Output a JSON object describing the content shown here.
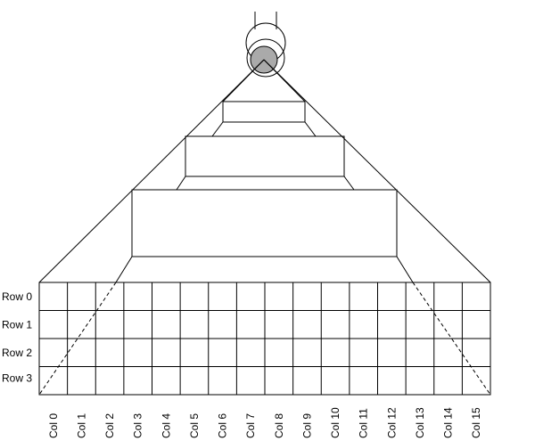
{
  "rows": [
    "Row 0",
    "Row 1",
    "Row 2",
    "Row 3"
  ],
  "columns": [
    "Col 0",
    "Col 1",
    "Col 2",
    "Col 3",
    "Col 4",
    "Col 5",
    "Col 6",
    "Col 7",
    "Col 8",
    "Col 9",
    "Col 10",
    "Col 11",
    "Col 12",
    "Col 13",
    "Col 14",
    "Col 15"
  ],
  "colors": {
    "line": "#000000",
    "lens": "#aaaaaa",
    "background": "#ffffff"
  }
}
